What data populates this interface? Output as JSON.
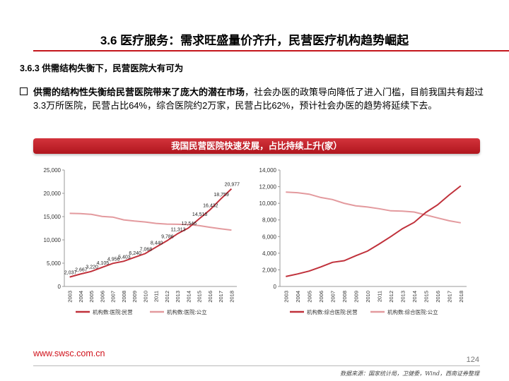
{
  "header": {
    "title": "3.6 医疗服务：需求旺盛量价齐升，民营医疗机构趋势崛起",
    "subtitle": "3.6.3 供需结构失衡下，民营医院大有可为"
  },
  "bullet": {
    "bold_text": "供需的结构性失衡给民营医院带来了庞大的潜在市场",
    "body_text": "，社会办医的政策导向降低了进入门槛，目前我国共有超过3.3万所医院，民营占比64%，综合医院约2万家，民营占比62%，预计社会办医的趋势将延续下去。"
  },
  "banner": {
    "text": "我国民营医院快速发展，占比持续上升(家）"
  },
  "footer": {
    "url": "www.swsc.com.cn",
    "page": "124",
    "source": "数据来源：国家统计局，卫健委，Wind，西南证券整理"
  },
  "colors": {
    "accent": "#c4161c",
    "series_private": "#c0313b",
    "series_public": "#e39a9e"
  },
  "chart_data": [
    {
      "type": "line",
      "x": [
        "2003",
        "2004",
        "2005",
        "2006",
        "2007",
        "2008",
        "2009",
        "2010",
        "2011",
        "2012",
        "2013",
        "2014",
        "2015",
        "2016",
        "2017",
        "2018"
      ],
      "ylim": [
        0,
        25000
      ],
      "yticks": [
        "0",
        "5,000",
        "10,000",
        "15,000",
        "20,000",
        "25,000"
      ],
      "ytick_values": [
        0,
        5000,
        10000,
        15000,
        20000,
        25000
      ],
      "grid": false,
      "legend_position": "bottom",
      "series": [
        {
          "name": "机构数:医院:民营",
          "color": "#c0313b",
          "values": [
            2037,
            2667,
            3220,
            4105,
            4956,
            5403,
            6240,
            7068,
            8440,
            9786,
            11313,
            12546,
            14518,
            16432,
            18759,
            20977
          ],
          "labels": [
            "2,037",
            "2,667",
            "3,220",
            "4,105",
            "4,956",
            "5,403",
            "6,240",
            "7,068",
            "8,440",
            "9,786",
            "11,313",
            "12,546",
            "14,518",
            "16,432",
            "18,759",
            "20,977"
          ]
        },
        {
          "name": "机构数:医院:公立",
          "color": "#e39a9e",
          "values": [
            15700,
            15650,
            15480,
            15050,
            14900,
            14300,
            14050,
            13850,
            13550,
            13400,
            13350,
            13300,
            13070,
            12710,
            12400,
            12100
          ]
        }
      ]
    },
    {
      "type": "line",
      "x": [
        "2003",
        "2004",
        "2005",
        "2006",
        "2007",
        "2008",
        "2009",
        "2010",
        "2011",
        "2012",
        "2013",
        "2014",
        "2015",
        "2016",
        "2017",
        "2018"
      ],
      "ylim": [
        0,
        14000
      ],
      "yticks": [
        "0",
        "2,000",
        "4,000",
        "6,000",
        "8,000",
        "10,000",
        "12,000",
        "14,000"
      ],
      "ytick_values": [
        0,
        2000,
        4000,
        6000,
        8000,
        10000,
        12000,
        14000
      ],
      "grid": false,
      "legend_position": "bottom",
      "series": [
        {
          "name": "机构数:综合医院:民营",
          "color": "#c0313b",
          "values": [
            1200,
            1500,
            1850,
            2350,
            2900,
            3100,
            3700,
            4250,
            5100,
            6000,
            6950,
            7700,
            8900,
            9800,
            11000,
            12100
          ]
        },
        {
          "name": "机构数:综合医院:公立",
          "color": "#e39a9e",
          "values": [
            11350,
            11280,
            11100,
            10700,
            10450,
            10000,
            9700,
            9550,
            9350,
            9100,
            9050,
            8950,
            8600,
            8250,
            7900,
            7650
          ]
        }
      ]
    }
  ]
}
